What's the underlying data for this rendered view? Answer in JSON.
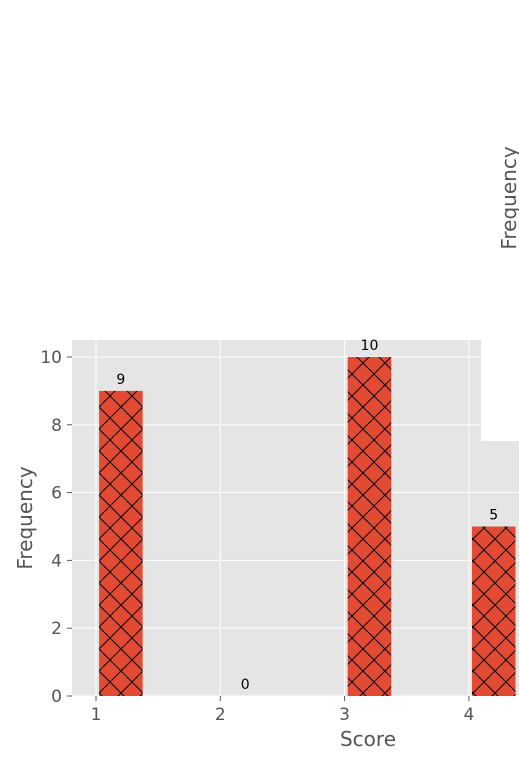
{
  "chart_data": [
    {
      "type": "bar",
      "xlabel": "Score",
      "ylabel": "Frequency",
      "ylim": [
        0,
        10.5
      ],
      "yticks": [
        0,
        2,
        4,
        6,
        8,
        10
      ],
      "xticks": [
        1,
        2,
        3,
        4
      ],
      "x": [
        1.2,
        2.2,
        3.2,
        4.2
      ],
      "values": [
        9,
        0,
        10,
        5
      ],
      "data_labels": [
        "9",
        "0",
        "10",
        "5"
      ],
      "bar_color": "#e24a33",
      "hatch": "cross-diagonal",
      "grid": true,
      "background": "#e5e5e5"
    },
    {
      "type": "bar",
      "ylabel": "Frequency",
      "note_visible": "partially visible panel at right edge"
    }
  ]
}
